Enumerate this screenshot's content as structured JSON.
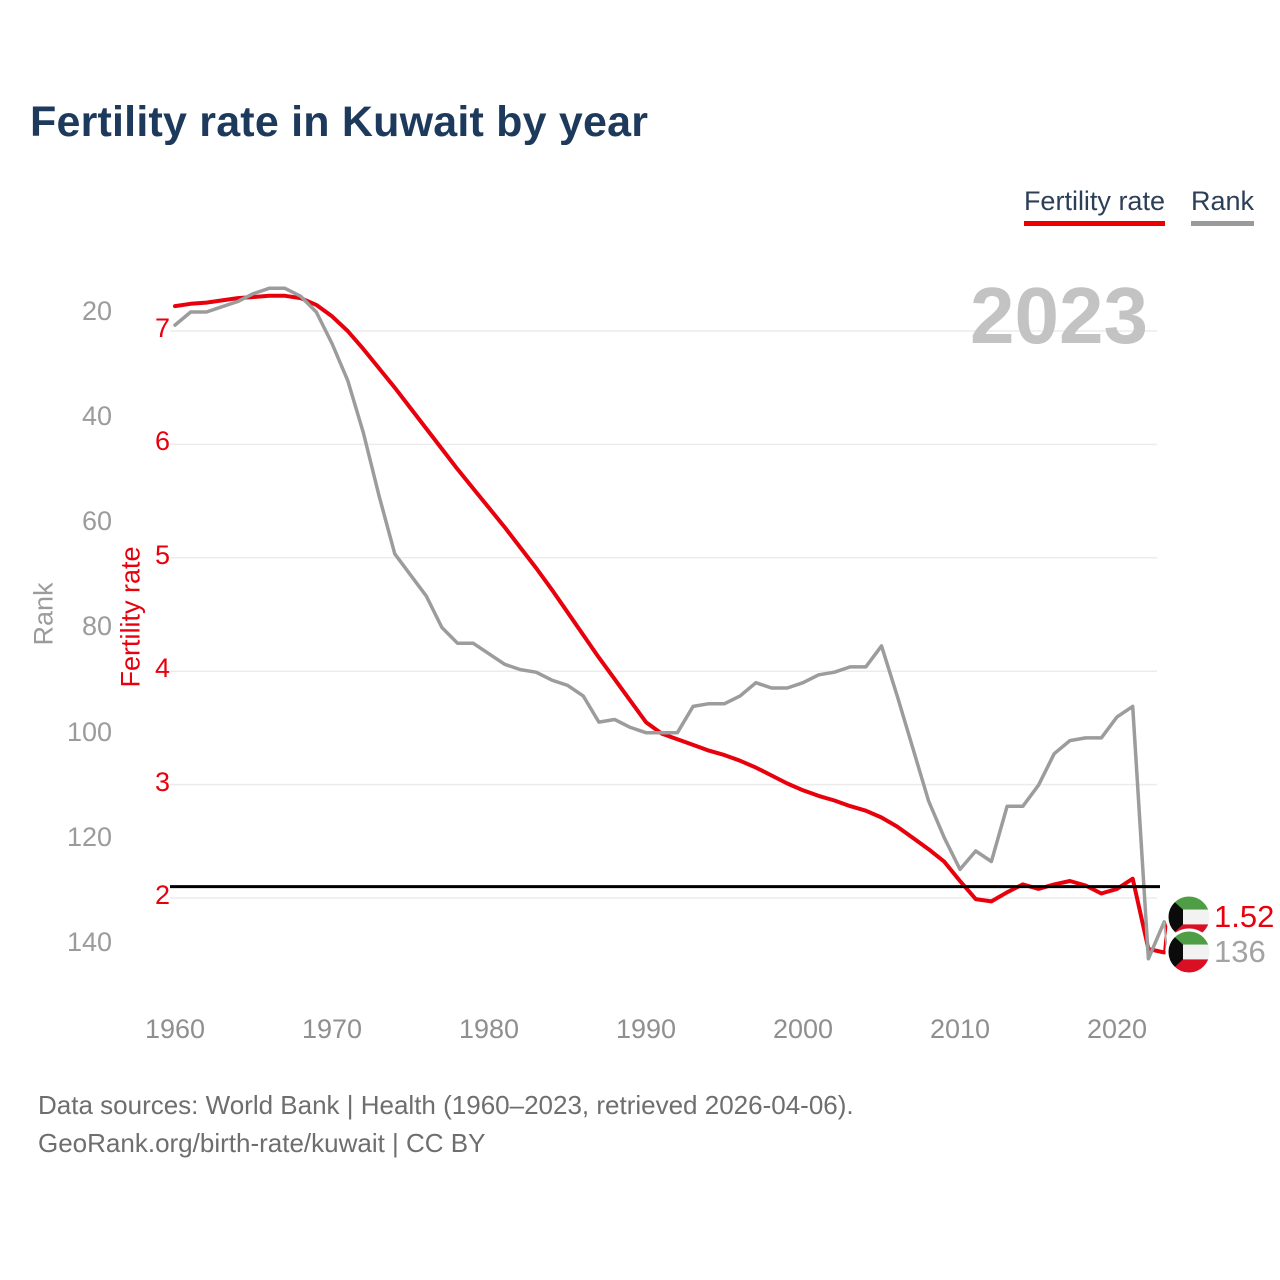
{
  "title": "Fertility rate in Kuwait by year",
  "watermark": "2023",
  "legend": [
    {
      "label": "Fertility rate",
      "color": "#ee0000"
    },
    {
      "label": "Rank",
      "color": "#9a9a9a"
    }
  ],
  "axes": {
    "rank": {
      "title": "Rank",
      "ticks": [
        20,
        40,
        60,
        80,
        100,
        120,
        140
      ]
    },
    "fertility": {
      "title": "Fertility rate",
      "ticks": [
        7,
        6,
        5,
        4,
        3,
        2
      ]
    },
    "x": {
      "ticks": [
        1960,
        1970,
        1980,
        1990,
        2000,
        2010,
        2020
      ]
    }
  },
  "replacement_line_value": 2.1,
  "end_labels": [
    {
      "label": "1.52",
      "series": "Fertility rate",
      "flag": "kuwait-flag-icon"
    },
    {
      "label": "136",
      "series": "Rank",
      "flag": "kuwait-flag-icon"
    }
  ],
  "footer": {
    "line1": "Data sources: World Bank | Health (1960–2023, retrieved 2026-04-06).",
    "line2": "GeoRank.org/birth-rate/kuwait | CC BY"
  },
  "colors": {
    "fertility_line": "#e8000d",
    "rank_line": "#9c9c9c",
    "gridline": "#ececec",
    "replacement_line": "#000000",
    "title_text": "#1d3a5c",
    "watermark_text": "#c3c3c3",
    "flag_green": "#4f9e45",
    "flag_white": "#f2f2f2",
    "flag_red": "#d91023",
    "flag_black": "#0b0b0b"
  },
  "chart_data": {
    "type": "line",
    "title": "Fertility rate in Kuwait by year",
    "x": [
      1960,
      1961,
      1962,
      1963,
      1964,
      1965,
      1966,
      1967,
      1968,
      1969,
      1970,
      1971,
      1972,
      1973,
      1974,
      1975,
      1976,
      1977,
      1978,
      1979,
      1980,
      1981,
      1982,
      1983,
      1984,
      1985,
      1986,
      1987,
      1988,
      1989,
      1990,
      1991,
      1992,
      1993,
      1994,
      1995,
      1996,
      1997,
      1998,
      1999,
      2000,
      2001,
      2002,
      2003,
      2004,
      2005,
      2006,
      2007,
      2008,
      2009,
      2010,
      2011,
      2012,
      2013,
      2014,
      2015,
      2016,
      2017,
      2018,
      2019,
      2020,
      2021,
      2022,
      2023
    ],
    "series": [
      {
        "name": "Fertility rate",
        "axis": "fertility",
        "color": "#e8000d",
        "values": [
          7.22,
          7.24,
          7.25,
          7.27,
          7.29,
          7.3,
          7.31,
          7.31,
          7.29,
          7.23,
          7.13,
          7.0,
          6.84,
          6.67,
          6.5,
          6.32,
          6.14,
          5.96,
          5.78,
          5.61,
          5.44,
          5.27,
          5.09,
          4.91,
          4.72,
          4.52,
          4.32,
          4.12,
          3.93,
          3.74,
          3.55,
          3.45,
          3.4,
          3.35,
          3.3,
          3.26,
          3.21,
          3.15,
          3.08,
          3.01,
          2.95,
          2.9,
          2.86,
          2.81,
          2.77,
          2.71,
          2.63,
          2.53,
          2.43,
          2.32,
          2.15,
          1.99,
          1.97,
          2.05,
          2.12,
          2.08,
          2.12,
          2.15,
          2.11,
          2.04,
          2.08,
          2.17,
          1.55,
          1.52
        ]
      },
      {
        "name": "Rank",
        "axis": "rank",
        "color": "#9c9c9c",
        "values": [
          22.5,
          20,
          20,
          19,
          18,
          16.5,
          15.5,
          15.5,
          17,
          20,
          26,
          33,
          43,
          55,
          66,
          70,
          74,
          80,
          83,
          83,
          85,
          87,
          88,
          88.5,
          90,
          91,
          93,
          98,
          97.5,
          99,
          100,
          100,
          100,
          95,
          94.5,
          94.5,
          93,
          90.5,
          91.5,
          91.5,
          90.5,
          89,
          88.5,
          87.5,
          87.5,
          83.5,
          93,
          103,
          113,
          120,
          126,
          122.5,
          124.5,
          114,
          114,
          110,
          104,
          101.5,
          101,
          101,
          97,
          95,
          143,
          136
        ]
      }
    ],
    "xlabel": "",
    "ylabel_left_outer": "Rank",
    "ylabel_left_inner": "Fertility rate",
    "fertility_axis_range": [
      1.4,
      7.45
    ],
    "rank_axis_range": [
      14,
      146
    ],
    "rank_axis_increases_downward": true,
    "grid": "horizontal-at-fertility-integers",
    "legend_position": "top-right",
    "annotations": [
      {
        "type": "hline",
        "value": 2.1,
        "axis": "fertility",
        "color": "#000000"
      },
      {
        "type": "watermark",
        "text": "2023"
      },
      {
        "type": "end-value",
        "series": "Fertility rate",
        "year": 2023,
        "text": "1.52"
      },
      {
        "type": "end-value",
        "series": "Rank",
        "year": 2023,
        "text": "136"
      }
    ]
  }
}
